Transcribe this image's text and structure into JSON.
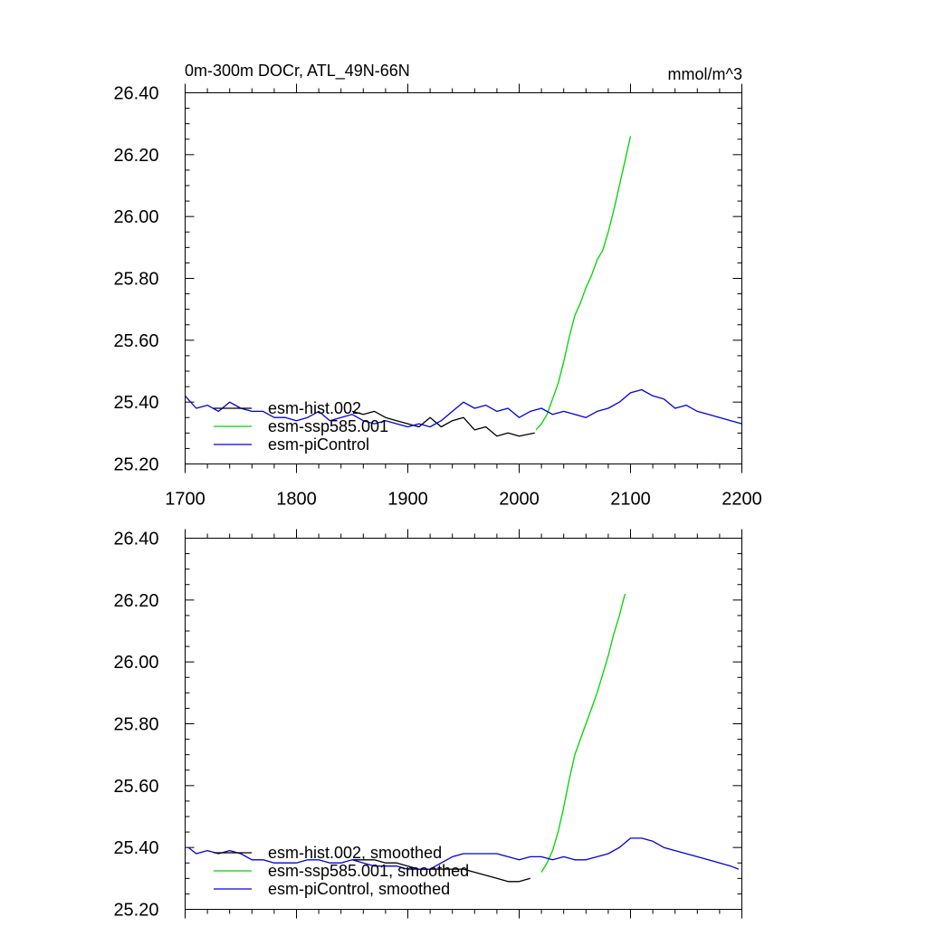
{
  "chart_data": [
    {
      "type": "line",
      "title": "0m-300m DOCr, ATL_49N-66N",
      "units": "mmol/m^3",
      "xlim": [
        1700,
        2200
      ],
      "ylim": [
        25.2,
        26.4
      ],
      "x_ticks": [
        1700,
        1800,
        1900,
        2000,
        2100,
        2200
      ],
      "x_tick_labels": [
        "1700",
        "1800",
        "1900",
        "2000",
        "2100",
        "2200"
      ],
      "y_ticks": [
        25.2,
        25.4,
        25.6,
        25.8,
        26.0,
        26.2,
        26.4
      ],
      "y_tick_labels": [
        "25.20",
        "25.40",
        "25.60",
        "25.80",
        "26.00",
        "26.20",
        "26.40"
      ],
      "legend_position": "bottom-left",
      "series": [
        {
          "name": "esm-hist.002",
          "color": "#000000",
          "x": [
            1850,
            1860,
            1870,
            1880,
            1890,
            1900,
            1910,
            1920,
            1930,
            1940,
            1950,
            1960,
            1970,
            1980,
            1990,
            2000,
            2014
          ],
          "y": [
            25.37,
            25.36,
            25.37,
            25.35,
            25.34,
            25.33,
            25.32,
            25.35,
            25.32,
            25.34,
            25.35,
            25.31,
            25.32,
            25.29,
            25.3,
            25.29,
            25.3
          ]
        },
        {
          "name": "esm-ssp585.001",
          "color": "#00d400",
          "x": [
            2015,
            2020,
            2025,
            2030,
            2035,
            2040,
            2045,
            2050,
            2055,
            2060,
            2065,
            2070,
            2075,
            2080,
            2085,
            2090,
            2095,
            2100
          ],
          "y": [
            25.31,
            25.33,
            25.36,
            25.41,
            25.46,
            25.53,
            25.61,
            25.68,
            25.72,
            25.77,
            25.81,
            25.86,
            25.89,
            25.95,
            26.02,
            26.1,
            26.18,
            26.26
          ]
        },
        {
          "name": "esm-piControl",
          "color": "#0000e0",
          "x": [
            1700,
            1710,
            1720,
            1730,
            1740,
            1750,
            1760,
            1770,
            1780,
            1790,
            1800,
            1810,
            1820,
            1830,
            1840,
            1850,
            1860,
            1870,
            1880,
            1890,
            1900,
            1910,
            1920,
            1930,
            1940,
            1950,
            1960,
            1970,
            1980,
            1990,
            2000,
            2010,
            2020,
            2030,
            2040,
            2050,
            2060,
            2070,
            2080,
            2090,
            2100,
            2110,
            2120,
            2130,
            2140,
            2150,
            2160,
            2170,
            2180,
            2190,
            2200
          ],
          "y": [
            25.42,
            25.38,
            25.39,
            25.37,
            25.4,
            25.38,
            25.37,
            25.37,
            25.35,
            25.35,
            25.34,
            25.35,
            25.37,
            25.34,
            25.35,
            25.36,
            25.34,
            25.33,
            25.34,
            25.33,
            25.32,
            25.33,
            25.32,
            25.34,
            25.37,
            25.4,
            25.38,
            25.39,
            25.37,
            25.38,
            25.35,
            25.37,
            25.38,
            25.36,
            25.37,
            25.36,
            25.35,
            25.37,
            25.38,
            25.4,
            25.43,
            25.44,
            25.42,
            25.41,
            25.38,
            25.39,
            25.37,
            25.36,
            25.35,
            25.34,
            25.33
          ]
        }
      ]
    },
    {
      "type": "line",
      "xlim": [
        1700,
        2200
      ],
      "ylim": [
        25.2,
        26.4
      ],
      "x_ticks": [
        1700,
        1800,
        1900,
        2000,
        2100,
        2200
      ],
      "y_ticks": [
        25.2,
        25.4,
        25.6,
        25.8,
        26.0,
        26.2,
        26.4
      ],
      "y_tick_labels": [
        "25.20",
        "25.40",
        "25.60",
        "25.80",
        "26.00",
        "26.20",
        "26.40"
      ],
      "legend_position": "bottom-left",
      "series": [
        {
          "name": "esm-hist.002, smoothed",
          "color": "#000000",
          "x": [
            1850,
            1860,
            1870,
            1880,
            1890,
            1900,
            1910,
            1920,
            1930,
            1940,
            1950,
            1960,
            1970,
            1980,
            1990,
            2000,
            2010
          ],
          "y": [
            25.36,
            25.36,
            25.36,
            25.35,
            25.35,
            25.34,
            25.33,
            25.33,
            25.33,
            25.33,
            25.33,
            25.32,
            25.31,
            25.3,
            25.29,
            25.29,
            25.3
          ]
        },
        {
          "name": "esm-ssp585.001, smoothed",
          "color": "#00d400",
          "x": [
            2020,
            2025,
            2030,
            2035,
            2040,
            2045,
            2050,
            2055,
            2060,
            2065,
            2070,
            2075,
            2080,
            2085,
            2090,
            2095
          ],
          "y": [
            25.32,
            25.35,
            25.39,
            25.45,
            25.53,
            25.62,
            25.7,
            25.75,
            25.8,
            25.85,
            25.9,
            25.96,
            26.02,
            26.09,
            26.15,
            26.22
          ]
        },
        {
          "name": "esm-piControl, smoothed",
          "color": "#0000e0",
          "x": [
            1703,
            1710,
            1720,
            1730,
            1740,
            1750,
            1760,
            1770,
            1780,
            1790,
            1800,
            1810,
            1820,
            1830,
            1840,
            1850,
            1860,
            1870,
            1880,
            1890,
            1900,
            1910,
            1920,
            1930,
            1940,
            1950,
            1960,
            1970,
            1980,
            1990,
            2000,
            2010,
            2020,
            2030,
            2040,
            2050,
            2060,
            2070,
            2080,
            2090,
            2100,
            2110,
            2120,
            2130,
            2140,
            2150,
            2160,
            2170,
            2180,
            2190,
            2197
          ],
          "y": [
            25.4,
            25.38,
            25.39,
            25.38,
            25.39,
            25.38,
            25.36,
            25.36,
            25.35,
            25.35,
            25.35,
            25.36,
            25.36,
            25.35,
            25.35,
            25.36,
            25.35,
            25.34,
            25.34,
            25.34,
            25.33,
            25.33,
            25.33,
            25.35,
            25.37,
            25.38,
            25.38,
            25.38,
            25.38,
            25.37,
            25.36,
            25.37,
            25.37,
            25.36,
            25.37,
            25.36,
            25.36,
            25.37,
            25.38,
            25.4,
            25.43,
            25.43,
            25.42,
            25.4,
            25.39,
            25.38,
            25.37,
            25.36,
            25.35,
            25.34,
            25.33
          ]
        }
      ]
    }
  ]
}
